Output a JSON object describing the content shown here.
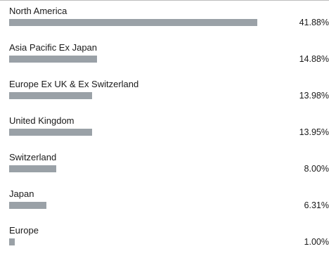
{
  "chart_data": {
    "type": "bar",
    "orientation": "horizontal",
    "categories": [
      "North America",
      "Asia Pacific Ex Japan",
      "Europe Ex UK & Ex Switzerland",
      "United Kingdom",
      "Switzerland",
      "Japan",
      "Europe"
    ],
    "values": [
      41.88,
      14.88,
      13.98,
      13.95,
      8.0,
      6.31,
      1.0
    ],
    "value_labels": [
      "41.88%",
      "14.88%",
      "13.98%",
      "13.95%",
      "8.00%",
      "6.31%",
      "1.00%"
    ],
    "unit": "%",
    "bar_color": "#9aa1a7",
    "grid": false,
    "legend": "none"
  }
}
